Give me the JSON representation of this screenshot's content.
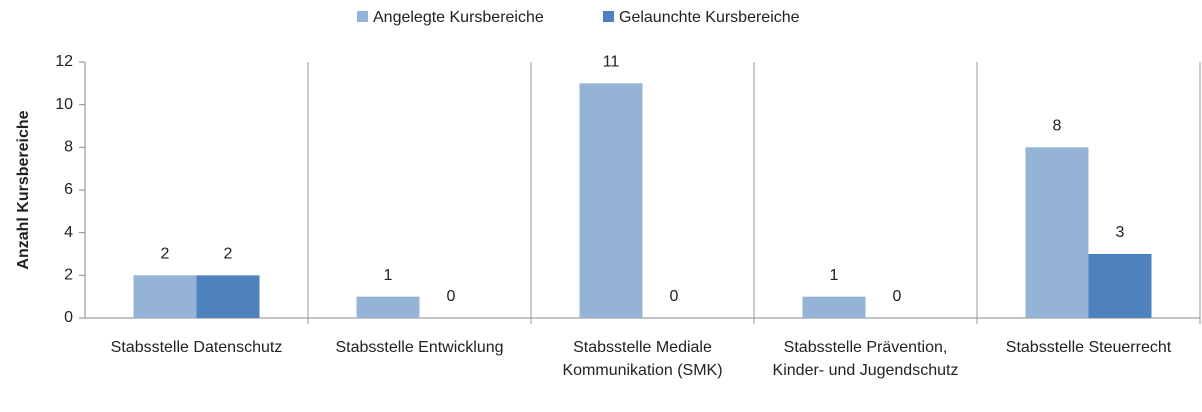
{
  "chart_data": {
    "type": "bar",
    "y_label": "Anzahl Kursbereiche",
    "categories": [
      "Stabsstelle Datenschutz",
      "Stabsstelle Entwicklung",
      "Stabsstelle Mediale Kommunikation (SMK)",
      "Stabsstelle Prävention, Kinder- und Jugendschutz",
      "Stabsstelle Steuerrecht"
    ],
    "series": [
      {
        "name": "Angelegte Kursbereiche",
        "color": "#95b3d7",
        "values": [
          2,
          1,
          11,
          1,
          8
        ]
      },
      {
        "name": "Gelaunchte Kursbereiche",
        "color": "#4f81bd",
        "values": [
          2,
          0,
          0,
          0,
          3
        ]
      }
    ],
    "ylim": [
      0,
      12
    ],
    "yticks": [
      0,
      2,
      4,
      6,
      8,
      10,
      12
    ],
    "legend": "top"
  }
}
